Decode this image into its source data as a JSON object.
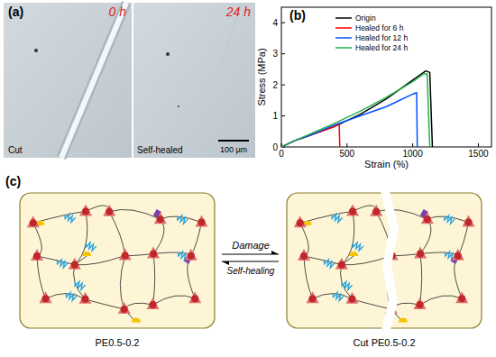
{
  "chart_data": {
    "type": "line",
    "x_label": "Strain (%)",
    "y_label": "Stress (MPa)",
    "xlim": [
      0,
      1600
    ],
    "xticks": [
      0,
      500,
      1000,
      1500
    ],
    "ylim": [
      0,
      4.5
    ],
    "yticks": [
      0,
      1,
      2,
      3,
      4
    ],
    "grid": false,
    "legend": "upper left",
    "series": [
      {
        "name": "Origin",
        "color": "#000000",
        "x": [
          0,
          100,
          200,
          400,
          600,
          800,
          1000,
          1100,
          1130,
          1150
        ],
        "values": [
          0,
          0.2,
          0.35,
          0.65,
          1.05,
          1.55,
          2.15,
          2.45,
          2.4,
          0
        ]
      },
      {
        "name": "Healed for 6 h",
        "color": "#ff0000",
        "x": [
          0,
          100,
          200,
          400,
          440,
          445
        ],
        "values": [
          0,
          0.2,
          0.35,
          0.65,
          0.75,
          0
        ]
      },
      {
        "name": "Healed for 12 h",
        "color": "#0050ff",
        "x": [
          0,
          100,
          200,
          400,
          600,
          800,
          1000,
          1030,
          1035
        ],
        "values": [
          0,
          0.2,
          0.35,
          0.7,
          1.0,
          1.3,
          1.7,
          1.75,
          0
        ]
      },
      {
        "name": "Healed for 24 h",
        "color": "#22b14c",
        "x": [
          0,
          100,
          200,
          400,
          600,
          800,
          1000,
          1080,
          1110,
          1130
        ],
        "values": [
          0,
          0.2,
          0.38,
          0.75,
          1.15,
          1.6,
          2.1,
          2.35,
          2.35,
          0
        ]
      }
    ]
  },
  "panels": {
    "a": {
      "label": "(a)",
      "left": {
        "time": "0 h",
        "caption": "Cut"
      },
      "right": {
        "time": "24 h",
        "caption": "Self-healed"
      },
      "scale_bar": "100 µm"
    },
    "b": {
      "label": "(b)"
    },
    "c": {
      "label": "(c)",
      "forward": "Damage",
      "backward": "Self-healing",
      "left_caption": "PE0.5-0.2",
      "right_caption": "Cut PE0.5-0.2"
    }
  }
}
